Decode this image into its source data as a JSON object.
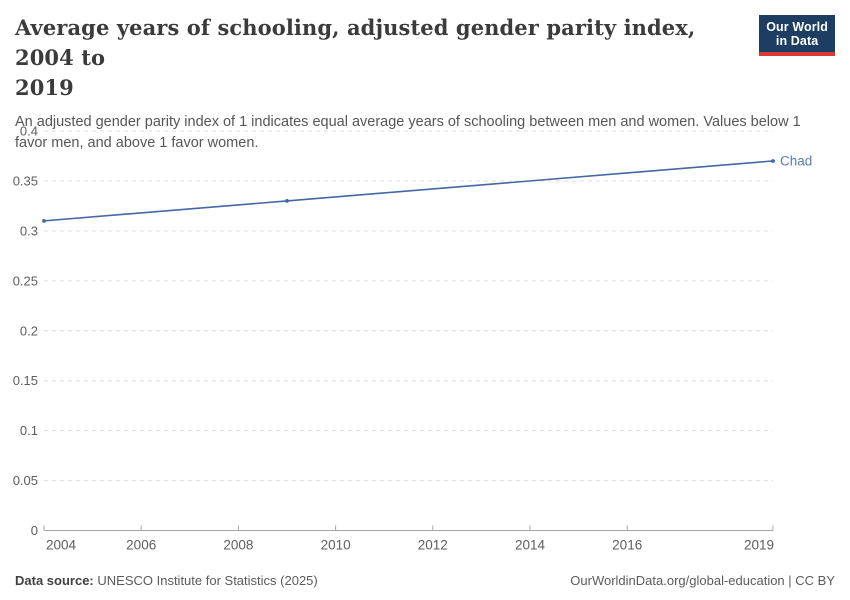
{
  "logo": {
    "line1": "Our World",
    "line2": "in Data",
    "bg_color": "#1d3d63",
    "accent_color": "#d93a34"
  },
  "header": {
    "title_lines": [
      "Average years of schooling, adjusted gender parity index, 2004 to",
      "2019"
    ],
    "title": "Average years of schooling, adjusted gender parity index, 2004 to 2019",
    "subtitle_lines": [
      "An adjusted gender parity index of 1 indicates equal average years of schooling between men and women. Values below 1",
      "favor men, and above 1 favor women."
    ],
    "subtitle": "An adjusted gender parity index of 1 indicates equal average years of schooling between men and women. Values below 1 favor men, and above 1 favor women."
  },
  "chart_data": {
    "type": "line",
    "series": [
      {
        "name": "Chad",
        "color": "#4467a5",
        "label_color": "#5b7bb5",
        "x": [
          2004,
          2009,
          2019
        ],
        "values": [
          0.31,
          0.33,
          0.37
        ]
      }
    ],
    "xlim": [
      2004,
      2019
    ],
    "ylim": [
      0,
      0.4
    ],
    "x_ticks": [
      2004,
      2006,
      2008,
      2010,
      2012,
      2014,
      2016,
      2019
    ],
    "x_tick_labels": [
      "2004",
      "2006",
      "2008",
      "2010",
      "2012",
      "2014",
      "2016",
      "2019"
    ],
    "y_ticks": [
      0,
      0.05,
      0.1,
      0.15,
      0.2,
      0.25,
      0.3,
      0.35,
      0.4
    ],
    "y_tick_labels": [
      "0",
      "0.05",
      "0.1",
      "0.15",
      "0.2",
      "0.25",
      "0.3",
      "0.35",
      "0.4"
    ],
    "grid": "horizontal-dashed",
    "gridline_color": "#dcdcdc",
    "axis_color": "#a5a5a5",
    "tick_label_color": "#5e5e5e",
    "legend_position": "end-of-line-label",
    "title": "Average years of schooling, adjusted gender parity index, 2004 to 2019",
    "xlabel": "",
    "ylabel": ""
  },
  "footer": {
    "source_label": "Data source:",
    "source": "UNESCO Institute for Statistics (2025)",
    "credit": "OurWorldinData.org/global-education | CC BY"
  }
}
